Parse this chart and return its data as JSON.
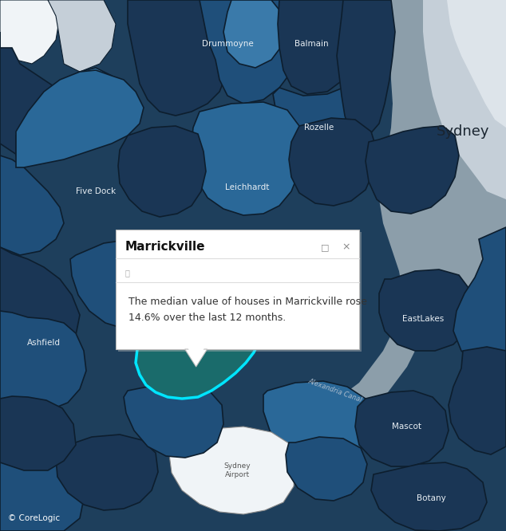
{
  "popup_title": "Marrickville",
  "popup_text_line1": "The median value of houses in Marrickville rose",
  "popup_text_line2": "14.6% over the last 12 months.",
  "popup_bg": "#ffffff",
  "highlight_fill": "#1a6b6b",
  "highlight_border": "#00e5ff",
  "map_bg": "#1e3f5c",
  "suburb_dark": "#1a3655",
  "suburb_medium": "#1f4f7a",
  "suburb_light": "#2a6898",
  "suburb_lighter": "#3a7aaa",
  "suburb_border": "#0d1e2e",
  "gray_map": "#8c9eaa",
  "gray_light": "#c5cfd8",
  "gray_lighter": "#dde4ea",
  "white_area": "#f0f4f7",
  "corelogic_text": "© CoreLogic",
  "figsize": [
    6.34,
    6.66
  ],
  "dpi": 100,
  "label_color_white": "#e8eef3",
  "label_color_dark": "#1a2a3a",
  "sydney_label_color": "#1a2530"
}
